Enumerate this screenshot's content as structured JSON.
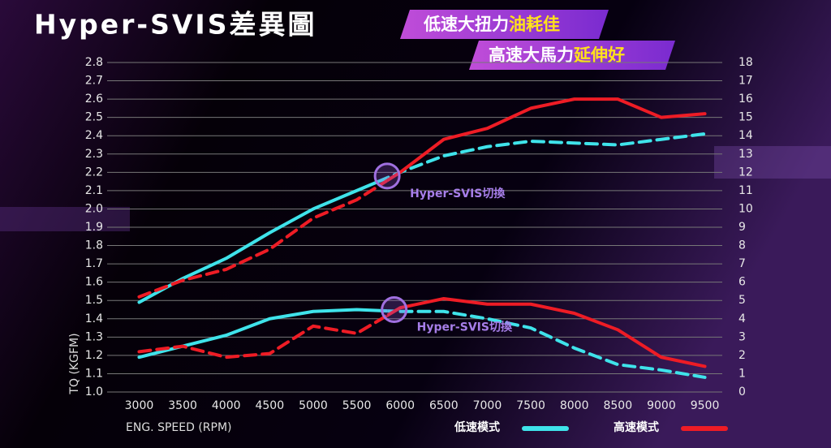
{
  "chart_data": {
    "type": "line",
    "title": "Hyper-SVIS差異圖",
    "badges": [
      {
        "text": "低速大扭力",
        "highlight": "油耗佳"
      },
      {
        "text": "高速大馬力",
        "highlight": "延伸好"
      }
    ],
    "y_label": "TQ (KGFM)",
    "x_label": "ENG. SPEED (RPM)",
    "x": [
      3000,
      3500,
      4000,
      4500,
      5000,
      5500,
      6000,
      6500,
      7000,
      7500,
      8000,
      8500,
      9000,
      9500
    ],
    "xlim": [
      2800,
      9700
    ],
    "xticks": [
      3000,
      3500,
      4000,
      4500,
      5000,
      5500,
      6000,
      6500,
      7000,
      7500,
      8000,
      8500,
      9000,
      9500
    ],
    "ylim": [
      1.0,
      2.8
    ],
    "yticks": [
      {
        "value": 1,
        "label": "1.0"
      },
      1.1,
      1.2,
      1.3,
      1.4,
      1.5,
      1.6,
      1.7,
      1.8,
      1.9,
      {
        "value": 2,
        "label": "2.0"
      },
      2.1,
      2.2,
      2.3,
      2.4,
      2.5,
      2.6,
      2.7,
      2.8
    ],
    "y2lim": [
      0,
      18
    ],
    "y2ticks": [
      0,
      1,
      2,
      3,
      4,
      5,
      6,
      7,
      8,
      9,
      10,
      11,
      12,
      13,
      14,
      15,
      16,
      17,
      18
    ],
    "grid": true,
    "modes": [
      {
        "name": "低速模式",
        "color": "#3fe3ea",
        "dash_side": "right"
      },
      {
        "name": "高速模式",
        "color": "#ee1c25",
        "dash_side": "left"
      }
    ],
    "series": [
      {
        "mode": 0,
        "axis": "y",
        "values": [
          1.49,
          1.62,
          1.73,
          1.87,
          2.0,
          2.1,
          2.2,
          2.29,
          2.34,
          2.37,
          2.36,
          2.35,
          2.38,
          2.41
        ]
      },
      {
        "mode": 1,
        "axis": "y",
        "values": [
          1.52,
          1.61,
          1.67,
          1.78,
          1.95,
          2.05,
          2.2,
          2.38,
          2.44,
          2.55,
          2.6,
          2.6,
          2.5,
          2.52
        ]
      },
      {
        "mode": 0,
        "axis": "y2",
        "values": [
          1.9,
          2.5,
          3.1,
          4.0,
          4.4,
          4.5,
          4.4,
          4.4,
          4.0,
          3.5,
          2.4,
          1.5,
          1.2,
          0.8
        ]
      },
      {
        "mode": 1,
        "axis": "y2",
        "values": [
          2.2,
          2.5,
          1.9,
          2.1,
          3.6,
          3.2,
          4.6,
          5.1,
          4.8,
          4.8,
          4.3,
          3.4,
          1.9,
          1.4
        ]
      }
    ],
    "annotations": [
      {
        "text": "Hyper-SVIS切換",
        "x": 5850,
        "y": 2.18,
        "axis": "y"
      },
      {
        "text": "Hyper-SVIS切換",
        "x": 5930,
        "y": 4.5,
        "axis": "y2"
      }
    ]
  }
}
